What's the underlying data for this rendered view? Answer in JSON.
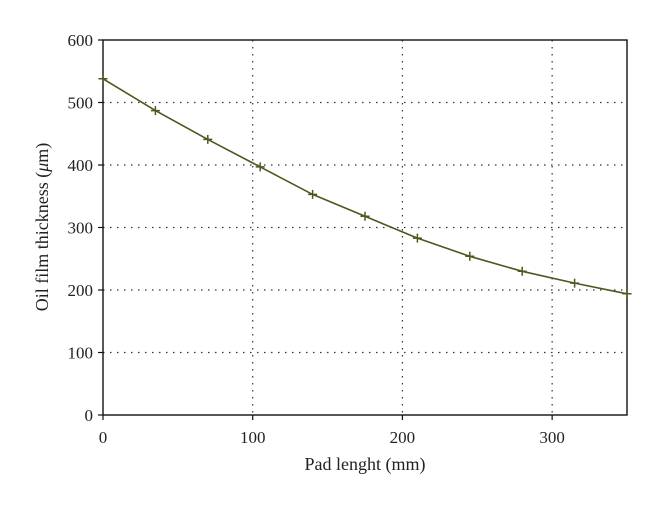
{
  "chart_data": {
    "type": "line",
    "xlabel": "Pad lenght (mm)",
    "ylabel_prefix": "Oil film thickness (",
    "ylabel_unit_italic": "μ",
    "ylabel_suffix": "m)",
    "xlim": [
      0,
      350
    ],
    "ylim": [
      0,
      600
    ],
    "xticks": [
      0,
      100,
      200,
      300
    ],
    "yticks": [
      0,
      100,
      200,
      300,
      400,
      500,
      600
    ],
    "grid": "dotted",
    "series": [
      {
        "color": "#4a5a1e",
        "marker": "plus",
        "x": [
          0,
          35,
          70,
          105,
          140,
          175,
          210,
          245,
          280,
          315,
          350
        ],
        "y": [
          538,
          487,
          441,
          397,
          353,
          318,
          283,
          254,
          230,
          211,
          194
        ]
      }
    ]
  }
}
